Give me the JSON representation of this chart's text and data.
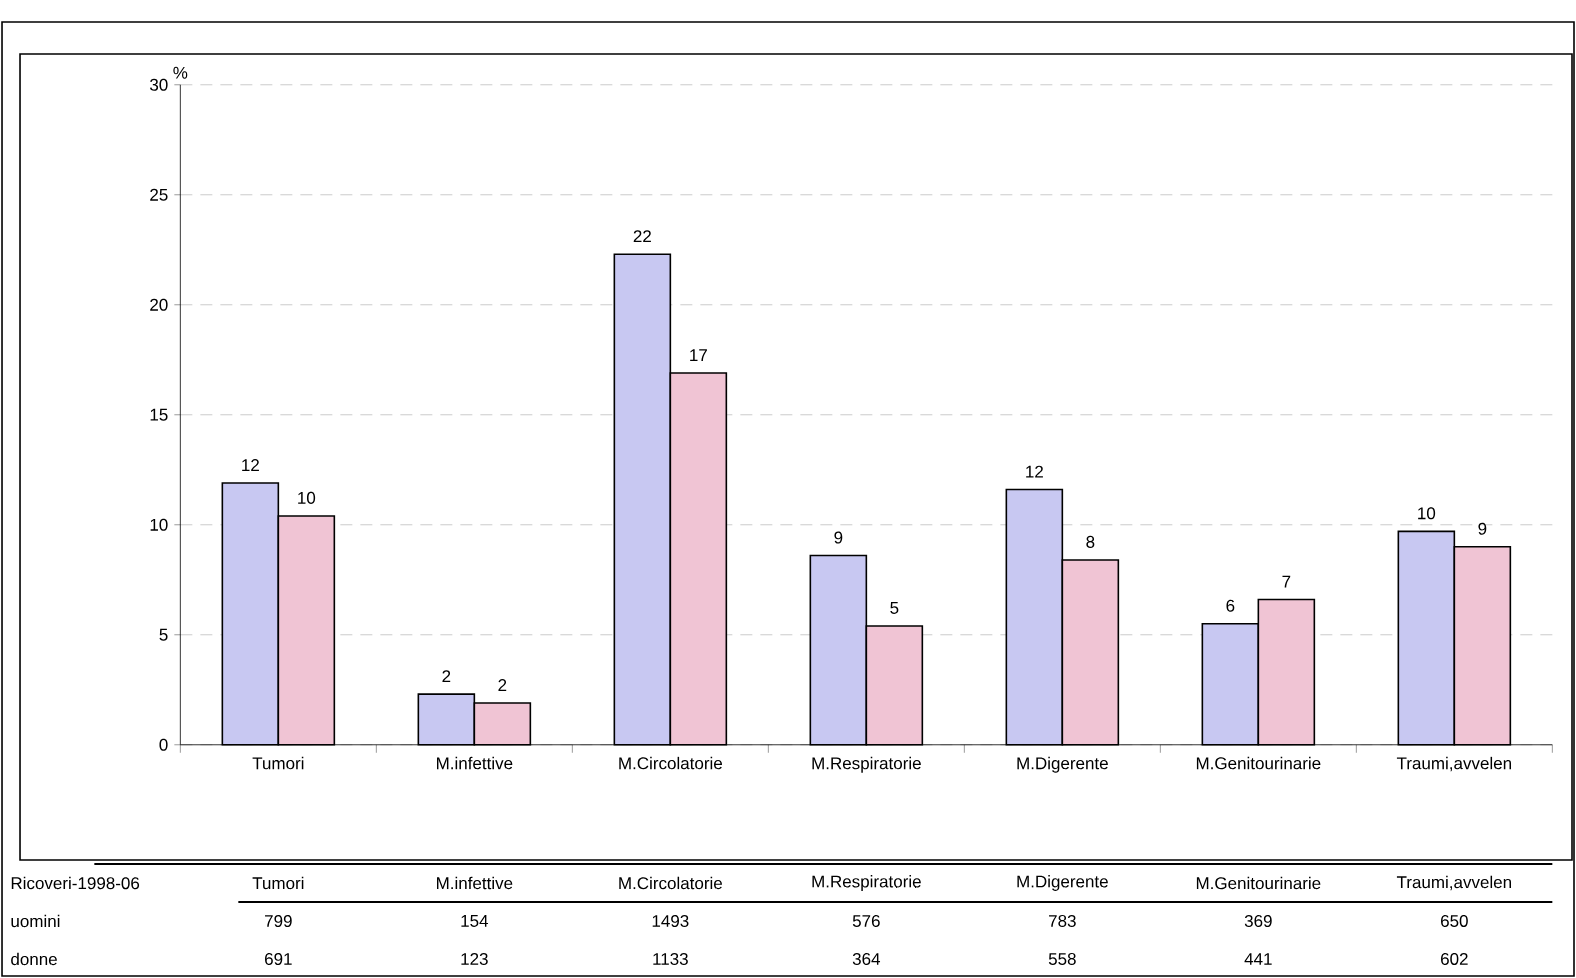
{
  "chart_data": [
    {
      "type": "bar",
      "ylabel": "%",
      "categories": [
        "Tumori",
        "M.infettive",
        "M.Circolatorie",
        "M.Respiratorie",
        "M.Digerente",
        "M.Genitourinarie",
        "Traumi,avvelen"
      ],
      "series": [
        {
          "color": "#c8c8f2",
          "values": [
            11.9,
            2.3,
            22.3,
            8.6,
            11.6,
            5.5,
            9.7
          ],
          "value_labels": [
            "12",
            "2",
            "22",
            "9",
            "12",
            "6",
            "10"
          ]
        },
        {
          "color": "#f0c4d4",
          "values": [
            10.4,
            1.9,
            16.9,
            5.4,
            8.4,
            6.6,
            9.0
          ],
          "value_labels": [
            "10",
            "2",
            "17",
            "5",
            "8",
            "7",
            "9"
          ]
        }
      ],
      "ylim": [
        0,
        30
      ],
      "yticks": [
        0,
        5,
        10,
        15,
        20,
        25,
        30
      ],
      "grid": "y"
    },
    {
      "type": "other",
      "title": "Ricoveri-1998-06",
      "categories": [
        "Tumori",
        "M.infettive",
        "M.Circolatorie",
        "M.Respiratorie",
        "M.Digerente",
        "M.Genitourinarie",
        "Traumi,avvelen"
      ],
      "series": [
        {
          "name": "uomini",
          "values": [
            799,
            154,
            1493,
            576,
            783,
            369,
            650
          ]
        },
        {
          "name": "donne",
          "values": [
            691,
            123,
            1133,
            364,
            558,
            441,
            602
          ]
        }
      ],
      "data_labels": true
    }
  ]
}
